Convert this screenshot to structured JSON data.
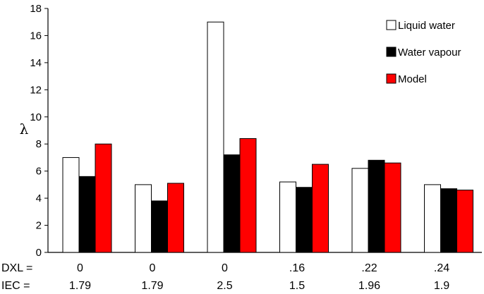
{
  "chart_data": {
    "type": "bar",
    "title": "",
    "xlabel": "",
    "ylabel": "λ",
    "ylim": [
      0,
      18
    ],
    "ytick_step": 2,
    "grid": false,
    "legend_position": "top-right",
    "categories": [
      "0",
      "0",
      "0",
      ".16",
      ".22",
      ".24"
    ],
    "row_labels": [
      {
        "label": "DXL =",
        "values": [
          "0",
          "0",
          "0",
          ".16",
          ".22",
          ".24"
        ]
      },
      {
        "label": "IEC  =",
        "values": [
          "1.79",
          "1.79",
          "2.5",
          "1.5",
          "1.96",
          "1.9"
        ]
      }
    ],
    "series": [
      {
        "name": "Liquid water",
        "color": "#ffffff",
        "values": [
          7.0,
          5.0,
          17.0,
          5.2,
          6.2,
          5.0
        ]
      },
      {
        "name": "Water vapour",
        "color": "#000000",
        "values": [
          5.6,
          3.8,
          7.2,
          4.8,
          6.8,
          4.7
        ]
      },
      {
        "name": "Model",
        "color": "#ff0000",
        "values": [
          8.0,
          5.1,
          8.4,
          6.5,
          6.6,
          4.6
        ]
      }
    ]
  }
}
